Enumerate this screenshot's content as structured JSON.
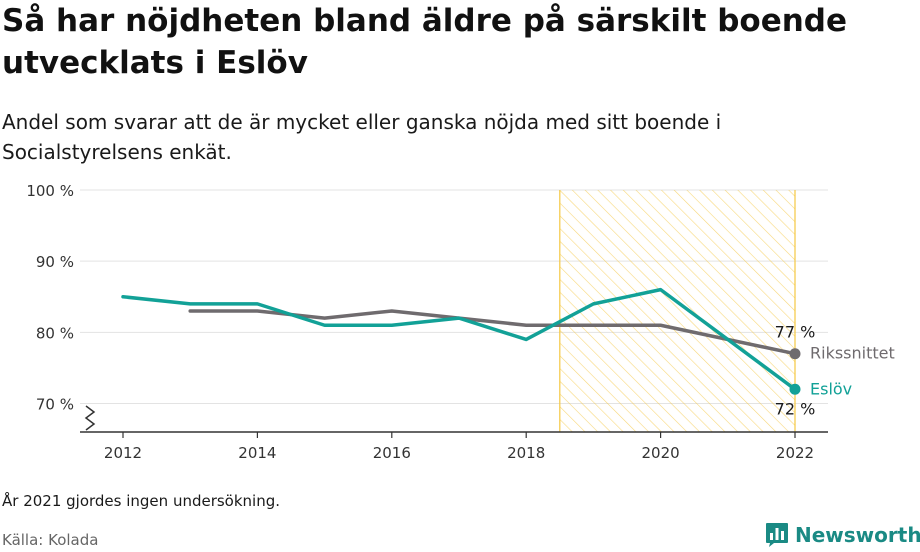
{
  "header": {
    "title": "Så har nöjdheten bland äldre på särskilt boende utvecklats i Eslöv",
    "subtitle": "Andel som svarar att de är mycket eller ganska nöjda med sitt boende i Socialstyrelsens enkät."
  },
  "footer": {
    "note": "År 2021 gjordes ingen undersökning.",
    "source": "Källa: Kolada",
    "brand": "Newsworthy",
    "brand_icon": "bar-chart-logo-icon"
  },
  "colors": {
    "eslov": "#12a197",
    "riket": "#6f6b6e",
    "highlight": "#f5c842",
    "grid": "#e3e3e3",
    "axis": "#333333"
  },
  "chart_data": {
    "type": "line",
    "xlim": [
      2011.5,
      2022.5
    ],
    "ylim": [
      66,
      100
    ],
    "x_ticks": [
      2012,
      2014,
      2016,
      2018,
      2020,
      2022
    ],
    "x_tick_labels": [
      "2012",
      "2014",
      "2016",
      "2018",
      "2020",
      "2022"
    ],
    "y_ticks": [
      70,
      80,
      90,
      100
    ],
    "y_tick_labels": [
      "70 %",
      "80 %",
      "90 %",
      "100 %"
    ],
    "grid": true,
    "y_axis_break": true,
    "highlight_range": [
      2018.5,
      2022
    ],
    "series": [
      {
        "name": "Rikssnittet",
        "key": "riket",
        "x": [
          2013,
          2014,
          2015,
          2016,
          2017,
          2018,
          2019,
          2020,
          2022
        ],
        "values": [
          83,
          83,
          82,
          83,
          82,
          81,
          81,
          81,
          77
        ],
        "end_label": "77 %"
      },
      {
        "name": "Eslöv",
        "key": "eslov",
        "x": [
          2012,
          2013,
          2014,
          2015,
          2016,
          2017,
          2018,
          2019,
          2020,
          2022
        ],
        "values": [
          85,
          84,
          84,
          81,
          81,
          82,
          79,
          84,
          86,
          72
        ],
        "end_label": "72 %"
      }
    ]
  }
}
